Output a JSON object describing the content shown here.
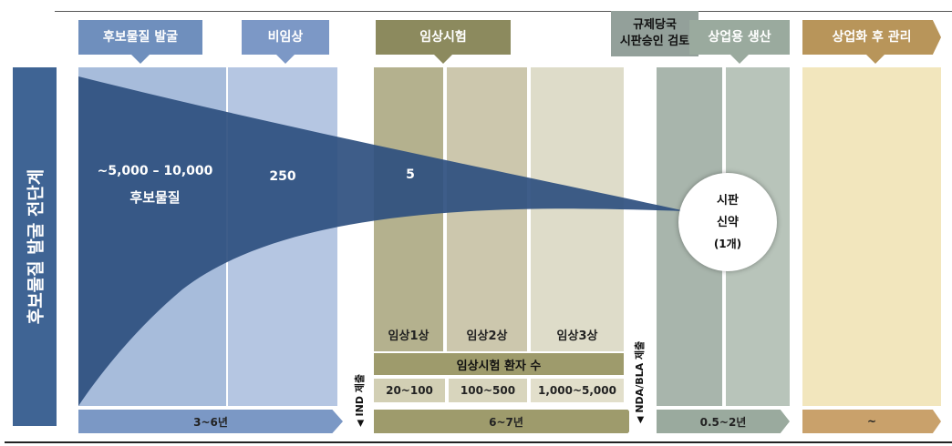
{
  "side_label": "후보물질 발굴 전단계",
  "headers": {
    "discovery": "후보물질 발굴",
    "preclinical": "비임상",
    "clinical": "임상시험",
    "review": "규제당국\n시판승인 검토",
    "production": "상업용 생산",
    "post": "상업화 후 관리"
  },
  "counts": {
    "discovery_line1": "~5,000 – 10,000",
    "discovery_line2": "후보물질",
    "preclinical": "250",
    "clinical": "5"
  },
  "approved": {
    "line1": "시판",
    "line2": "신약",
    "line3": "(1개)"
  },
  "phases": {
    "p1": "임상1상",
    "p2": "임상2상",
    "p3": "임상3상"
  },
  "patients": {
    "label": "임상시험 환자 수",
    "p1": "20~100",
    "p2": "100~500",
    "p3": "1,000~5,000"
  },
  "durations": {
    "discovery": "3~6년",
    "clinical": "6~7년",
    "review": "0.5~2년",
    "post": "~"
  },
  "milestones": {
    "ind": "IND 제출",
    "nda": "NDA/BLA 제출"
  },
  "colors": {
    "discovery": "#6f8fbd",
    "preclinical": "#7c98c6",
    "clinical": "#8c8a5e",
    "review": "#93a09a",
    "production": "#9aaa9e",
    "post": "#b8955a",
    "funnel": "#2e4f7f"
  }
}
